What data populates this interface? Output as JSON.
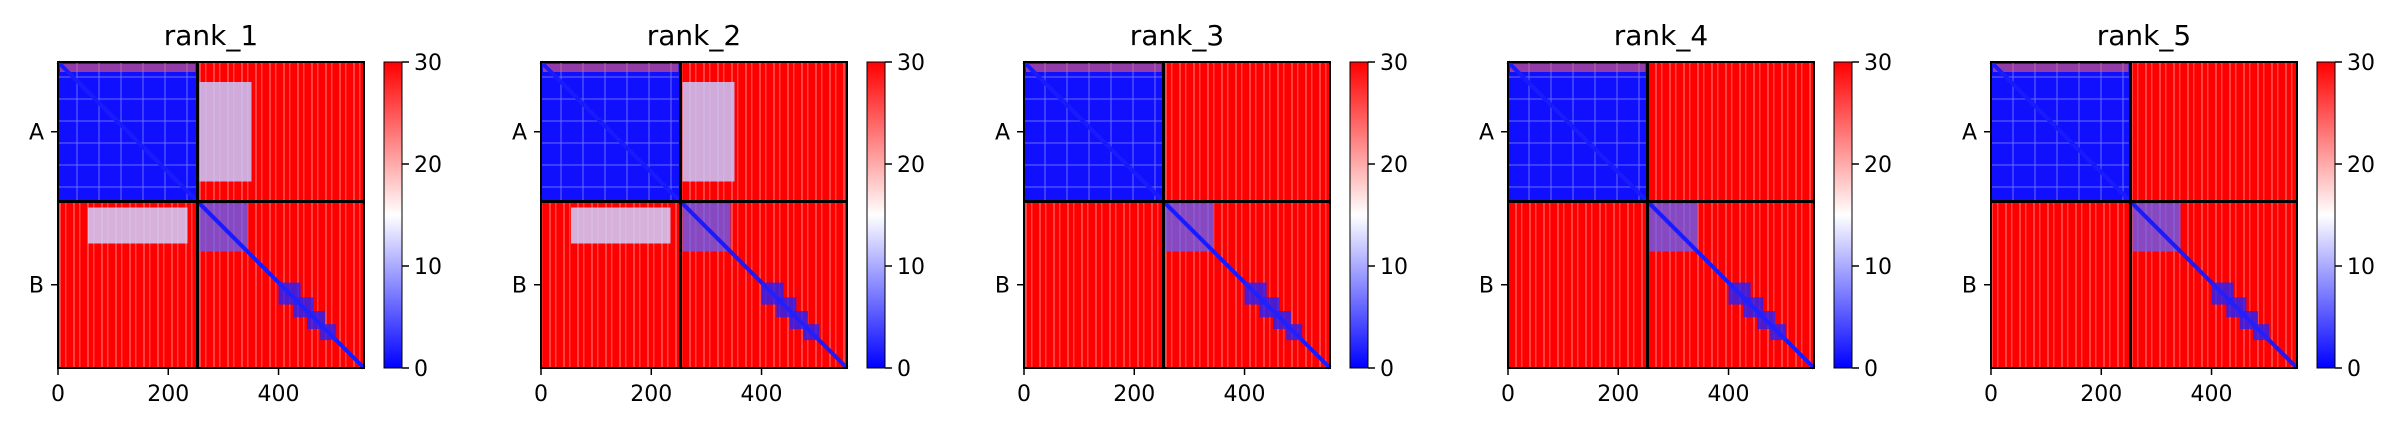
{
  "colors": {
    "low": "#0000ff",
    "mid": "#ffffff",
    "high": "#ff0000",
    "frame": "#000000"
  },
  "chart_data": [
    {
      "type": "heatmap",
      "title": "rank_1",
      "colormap": "bwr",
      "x_ticks": [
        "0",
        "200",
        "400"
      ],
      "x_tick_values": [
        0,
        200,
        400
      ],
      "xlim": [
        0,
        555
      ],
      "y_tick_labels": [
        "A",
        "B"
      ],
      "chain_boundary": 253,
      "colorbar": {
        "ticks": [
          "0",
          "10",
          "20",
          "30"
        ],
        "tick_values": [
          0,
          10,
          20,
          30
        ],
        "range": [
          0,
          30
        ]
      },
      "off_diagonal_blue_AB": true
    },
    {
      "type": "heatmap",
      "title": "rank_2",
      "colormap": "bwr",
      "x_ticks": [
        "0",
        "200",
        "400"
      ],
      "x_tick_values": [
        0,
        200,
        400
      ],
      "xlim": [
        0,
        555
      ],
      "y_tick_labels": [
        "A",
        "B"
      ],
      "chain_boundary": 253,
      "colorbar": {
        "ticks": [
          "0",
          "10",
          "20",
          "30"
        ],
        "tick_values": [
          0,
          10,
          20,
          30
        ],
        "range": [
          0,
          30
        ]
      },
      "off_diagonal_blue_AB": true
    },
    {
      "type": "heatmap",
      "title": "rank_3",
      "colormap": "bwr",
      "x_ticks": [
        "0",
        "200",
        "400"
      ],
      "x_tick_values": [
        0,
        200,
        400
      ],
      "xlim": [
        0,
        555
      ],
      "y_tick_labels": [
        "A",
        "B"
      ],
      "chain_boundary": 253,
      "colorbar": {
        "ticks": [
          "0",
          "10",
          "20",
          "30"
        ],
        "tick_values": [
          0,
          10,
          20,
          30
        ],
        "range": [
          0,
          30
        ]
      },
      "off_diagonal_blue_AB": false
    },
    {
      "type": "heatmap",
      "title": "rank_4",
      "colormap": "bwr",
      "x_ticks": [
        "0",
        "200",
        "400"
      ],
      "x_tick_values": [
        0,
        200,
        400
      ],
      "xlim": [
        0,
        555
      ],
      "y_tick_labels": [
        "A",
        "B"
      ],
      "chain_boundary": 253,
      "colorbar": {
        "ticks": [
          "0",
          "10",
          "20",
          "30"
        ],
        "tick_values": [
          0,
          10,
          20,
          30
        ],
        "range": [
          0,
          30
        ]
      },
      "off_diagonal_blue_AB": false
    },
    {
      "type": "heatmap",
      "title": "rank_5",
      "colormap": "bwr",
      "x_ticks": [
        "0",
        "200",
        "400"
      ],
      "x_tick_values": [
        0,
        200,
        400
      ],
      "xlim": [
        0,
        555
      ],
      "y_tick_labels": [
        "A",
        "B"
      ],
      "chain_boundary": 253,
      "colorbar": {
        "ticks": [
          "0",
          "10",
          "20",
          "30"
        ],
        "tick_values": [
          0,
          10,
          20,
          30
        ],
        "range": [
          0,
          30
        ]
      },
      "off_diagonal_blue_AB": false
    }
  ]
}
